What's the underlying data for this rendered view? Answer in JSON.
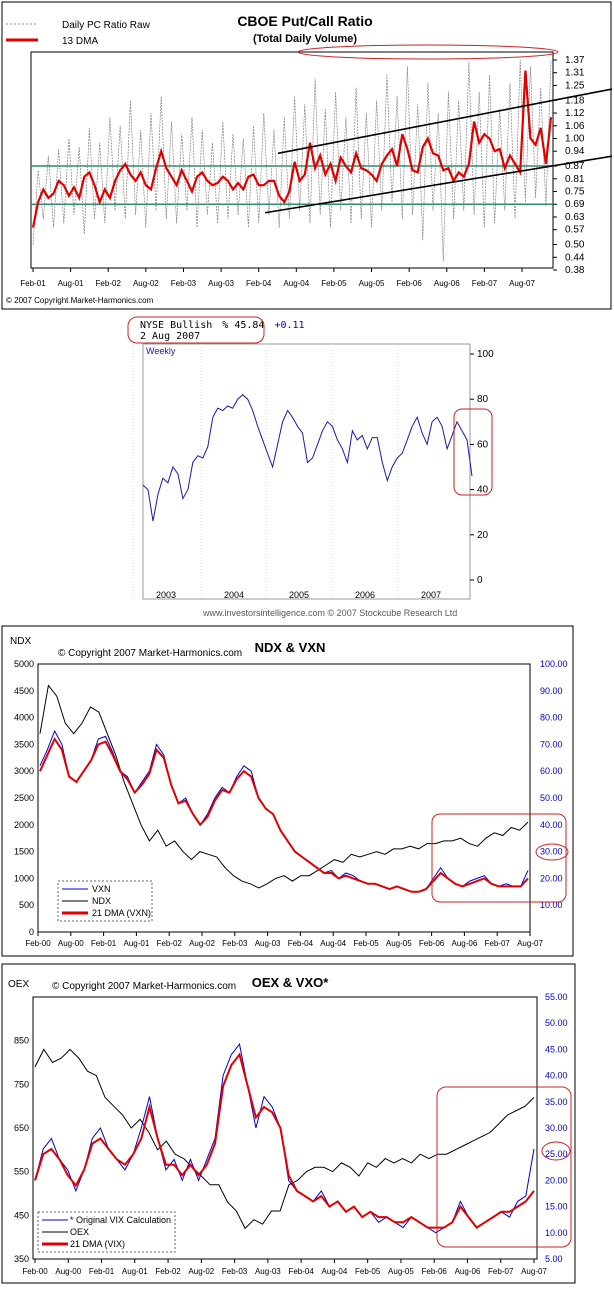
{
  "colors": {
    "red": "#e00000",
    "blue": "#0000cc",
    "black": "#000000",
    "gray": "#808080",
    "green": "#2e8b6e",
    "circle": "#cc2222",
    "ii_line": "#1a1aaa"
  },
  "chart_data": [
    {
      "type": "line",
      "title": "CBOE Put/Call Ratio",
      "subtitle": "(Total Daily Volume)",
      "legend": [
        "Daily PC Ratio Raw",
        "13 DMA"
      ],
      "copyright": "© 2007 Copyright Market-Harmonics.com",
      "x_ticks": [
        "Feb-01",
        "Aug-01",
        "Feb-02",
        "Aug-02",
        "Feb-03",
        "Aug-03",
        "Feb-04",
        "Aug-04",
        "Feb-05",
        "Aug-05",
        "Feb-06",
        "Aug-06",
        "Feb-07",
        "Aug-07"
      ],
      "y_ticks": [
        "1.37",
        "1.31",
        "1.25",
        "1.18",
        "1.12",
        "1.06",
        "1.00",
        "0.94",
        "0.87",
        "0.81",
        "0.75",
        "0.69",
        "0.63",
        "0.57",
        "0.50",
        "0.44",
        "0.38"
      ],
      "ylim": [
        0.38,
        1.37
      ],
      "horizontal_lines": [
        0.87,
        0.69
      ],
      "series": [
        {
          "name": "13 DMA",
          "values": [
            0.58,
            0.7,
            0.76,
            0.72,
            0.74,
            0.8,
            0.78,
            0.73,
            0.77,
            0.72,
            0.82,
            0.84,
            0.78,
            0.7,
            0.76,
            0.72,
            0.8,
            0.85,
            0.88,
            0.83,
            0.8,
            0.84,
            0.78,
            0.76,
            0.86,
            0.94,
            0.86,
            0.82,
            0.78,
            0.85,
            0.8,
            0.75,
            0.82,
            0.84,
            0.8,
            0.78,
            0.79,
            0.82,
            0.8,
            0.76,
            0.79,
            0.76,
            0.82,
            0.83,
            0.78,
            0.78,
            0.8,
            0.8,
            0.73,
            0.7,
            0.75,
            0.89,
            0.8,
            0.83,
            0.98,
            0.86,
            0.92,
            0.83,
            0.88,
            0.8,
            0.91,
            0.87,
            0.84,
            0.93,
            0.86,
            0.85,
            0.83,
            0.8,
            0.88,
            0.92,
            0.95,
            0.87,
            1.02,
            0.95,
            0.85,
            0.84,
            0.96,
            1.0,
            0.93,
            0.92,
            0.85,
            0.86,
            0.8,
            0.84,
            0.82,
            0.88,
            1.08,
            0.98,
            1.02,
            1.0,
            0.94,
            0.95,
            0.86,
            0.92,
            0.88,
            0.84,
            1.32,
            1.0,
            0.97,
            1.05,
            0.88,
            1.1
          ]
        },
        {
          "name": "Daily PC Ratio Raw",
          "values": [
            0.5,
            0.85,
            0.62,
            0.92,
            0.58,
            0.95,
            0.6,
            1.0,
            0.64,
            0.96,
            0.55,
            1.05,
            0.62,
            0.98,
            0.6,
            1.1,
            0.66,
            1.06,
            0.62,
            1.18,
            0.64,
            1.04,
            0.58,
            1.12,
            0.66,
            1.2,
            0.62,
            1.08,
            0.6,
            1.02,
            0.66,
            1.1,
            0.58,
            1.04,
            0.64,
            0.98,
            0.6,
            1.08,
            0.62,
            1.02,
            0.64,
            1.0,
            0.58,
            1.06,
            0.6,
            1.12,
            0.64,
            1.04,
            0.58,
            1.1,
            0.62,
            1.2,
            0.66,
            1.16,
            0.6,
            1.28,
            0.64,
            1.14,
            0.58,
            1.22,
            0.66,
            1.1,
            0.6,
            1.24,
            0.62,
            1.12,
            0.58,
            1.18,
            0.66,
            1.3,
            0.7,
            1.2,
            0.62,
            1.34,
            0.64,
            1.16,
            0.52,
            1.26,
            0.66,
            1.12,
            0.42,
            1.22,
            0.62,
            1.18,
            0.66,
            1.36,
            0.64,
            1.22,
            0.58,
            1.3,
            0.6,
            1.14,
            0.66,
            1.26,
            0.62,
            1.37,
            0.7,
            1.34,
            0.72,
            1.24,
            0.68,
            1.37
          ]
        }
      ],
      "trend_lines": [
        [
          0.93,
          1.2
        ],
        [
          0.65,
          0.86
        ]
      ]
    },
    {
      "type": "line",
      "title": "NYSE Bullish",
      "value_label": "% 45.84",
      "change": "+0.11",
      "date": "2 Aug 2007",
      "period": "Weekly",
      "source": "www.investorsintelligence.com © 2007 Stockcube Research Ltd",
      "x_ticks": [
        "2003",
        "2004",
        "2005",
        "2006",
        "2007"
      ],
      "y_ticks": [
        "100",
        "80",
        "60",
        "40",
        "20",
        "0"
      ],
      "ylim": [
        0,
        100
      ],
      "series": [
        {
          "name": "NYSE Bullish %",
          "values": [
            42,
            40,
            26,
            38,
            45,
            43,
            50,
            47,
            36,
            40,
            52,
            55,
            54,
            59,
            72,
            76,
            75,
            77,
            76,
            80,
            82,
            80,
            75,
            68,
            62,
            56,
            50,
            60,
            70,
            75,
            72,
            68,
            65,
            52,
            54,
            60,
            66,
            70,
            68,
            62,
            58,
            52,
            66,
            62,
            64,
            58,
            63,
            63,
            52,
            44,
            50,
            54,
            56,
            62,
            68,
            72,
            65,
            60,
            70,
            72,
            68,
            58,
            64,
            70,
            66,
            62,
            46
          ]
        }
      ]
    },
    {
      "type": "line",
      "title": "NDX & VXN",
      "left_axis_label": "NDX",
      "copyright": "© Copyright 2007 Market-Harmonics.com",
      "x_ticks": [
        "Feb-00",
        "Aug-00",
        "Feb-01",
        "Aug-01",
        "Feb-02",
        "Aug-02",
        "Feb-03",
        "Aug-03",
        "Feb-04",
        "Aug-04",
        "Feb-05",
        "Aug-05",
        "Feb-06",
        "Aug-06",
        "Feb-07",
        "Aug-07"
      ],
      "y_left_ticks": [
        "5000",
        "4500",
        "4000",
        "3500",
        "3000",
        "2500",
        "2000",
        "1500",
        "1000",
        "500",
        "0"
      ],
      "y_right_ticks": [
        "100.00",
        "90.00",
        "80.00",
        "70.00",
        "60.00",
        "50.00",
        "40.00",
        "30.00",
        "20.00",
        "10.00"
      ],
      "left_ylim": [
        0,
        5000
      ],
      "right_ylim": [
        0,
        100
      ],
      "legend": [
        "VXN",
        "NDX",
        "21 DMA (VXN)"
      ],
      "series": [
        {
          "name": "NDX",
          "axis": "left",
          "values": [
            3700,
            4600,
            4400,
            3900,
            3700,
            3900,
            4200,
            4100,
            3700,
            3300,
            2800,
            2400,
            2000,
            1700,
            1900,
            1600,
            1700,
            1500,
            1350,
            1500,
            1450,
            1400,
            1200,
            1050,
            950,
            900,
            820,
            900,
            1000,
            1050,
            950,
            1050,
            1050,
            1150,
            1250,
            1350,
            1300,
            1450,
            1400,
            1450,
            1500,
            1450,
            1550,
            1550,
            1600,
            1550,
            1650,
            1650,
            1700,
            1700,
            1750,
            1650,
            1600,
            1750,
            1850,
            1800,
            1950,
            1900,
            2050
          ]
        },
        {
          "name": "VXN",
          "axis": "right",
          "values": [
            62,
            68,
            75,
            70,
            58,
            56,
            60,
            64,
            72,
            73,
            67,
            60,
            58,
            52,
            56,
            60,
            70,
            66,
            55,
            48,
            50,
            44,
            40,
            44,
            50,
            54,
            52,
            58,
            62,
            60,
            50,
            46,
            44,
            38,
            34,
            30,
            28,
            26,
            24,
            22,
            23,
            20,
            22,
            21,
            19,
            18,
            18,
            17,
            16,
            17,
            16,
            15,
            15,
            16,
            20,
            24,
            20,
            18,
            17,
            19,
            20,
            21,
            18,
            17,
            18,
            17,
            17,
            23
          ]
        },
        {
          "name": "21 DMA (VXN)",
          "axis": "right",
          "values": [
            60,
            66,
            72,
            68,
            58,
            56,
            60,
            64,
            70,
            71,
            66,
            60,
            57,
            52,
            55,
            59,
            68,
            65,
            55,
            48,
            49,
            44,
            40,
            43,
            49,
            53,
            52,
            57,
            60,
            58,
            50,
            46,
            44,
            38,
            34,
            30,
            28,
            26,
            24,
            22,
            22,
            20,
            21,
            20,
            19,
            18,
            18,
            17,
            16,
            17,
            16,
            15,
            15,
            16,
            19,
            22,
            20,
            18,
            17,
            18,
            19,
            20,
            18,
            17,
            17,
            17,
            17,
            20
          ]
        }
      ]
    },
    {
      "type": "line",
      "title": "OEX & VXO*",
      "left_axis_label": "OEX",
      "copyright": "© Copyright 2007 Market-Harmonics.com",
      "x_ticks": [
        "Feb-00",
        "Aug-00",
        "Feb-01",
        "Aug-01",
        "Feb-02",
        "Aug-02",
        "Feb-03",
        "Aug-03",
        "Feb-04",
        "Aug-04",
        "Feb-05",
        "Aug-05",
        "Feb-06",
        "Aug-06",
        "Feb-07",
        "Aug-07"
      ],
      "y_left_ticks": [
        "850",
        "750",
        "650",
        "550",
        "450",
        "350"
      ],
      "y_right_ticks": [
        "55.00",
        "50.00",
        "45.00",
        "40.00",
        "35.00",
        "30.00",
        "25.00",
        "20.00",
        "15.00",
        "10.00",
        "5.00"
      ],
      "left_ylim": [
        350,
        950
      ],
      "right_ylim": [
        5,
        55
      ],
      "legend": [
        "* Original VIX Calculation",
        "OEX",
        "21 DMA (VIX)"
      ],
      "series": [
        {
          "name": "OEX",
          "axis": "left",
          "values": [
            790,
            830,
            800,
            810,
            830,
            810,
            780,
            770,
            720,
            700,
            680,
            650,
            670,
            640,
            600,
            620,
            590,
            580,
            560,
            540,
            520,
            520,
            480,
            460,
            420,
            440,
            430,
            460,
            460,
            520,
            530,
            550,
            560,
            560,
            550,
            570,
            560,
            540,
            570,
            560,
            580,
            570,
            580,
            570,
            590,
            580,
            590,
            590,
            600,
            610,
            620,
            630,
            640,
            660,
            680,
            690,
            700,
            720
          ]
        },
        {
          "name": "VXO",
          "axis": "right",
          "values": [
            20,
            26,
            28,
            24,
            22,
            18,
            22,
            28,
            30,
            26,
            24,
            22,
            25,
            30,
            36,
            28,
            22,
            24,
            20,
            24,
            20,
            24,
            28,
            40,
            44,
            46,
            38,
            30,
            36,
            34,
            30,
            20,
            18,
            17,
            16,
            18,
            15,
            16,
            14,
            15,
            13,
            14,
            12,
            13,
            12,
            11,
            13,
            12,
            11,
            10,
            11,
            12,
            16,
            13,
            11,
            12,
            13,
            14,
            13,
            16,
            17,
            26
          ]
        },
        {
          "name": "21 DMA (VIX)",
          "axis": "right",
          "values": [
            20,
            25,
            26,
            24,
            21,
            19,
            22,
            27,
            28,
            26,
            24,
            23,
            25,
            28,
            34,
            28,
            23,
            23,
            21,
            23,
            21,
            23,
            27,
            38,
            42,
            44,
            38,
            32,
            34,
            33,
            30,
            21,
            18,
            17,
            16,
            17,
            15,
            16,
            14,
            15,
            13,
            14,
            13,
            13,
            12,
            12,
            13,
            12,
            11,
            11,
            11,
            12,
            15,
            13,
            11,
            12,
            13,
            14,
            14,
            15,
            16,
            18
          ]
        }
      ]
    }
  ]
}
